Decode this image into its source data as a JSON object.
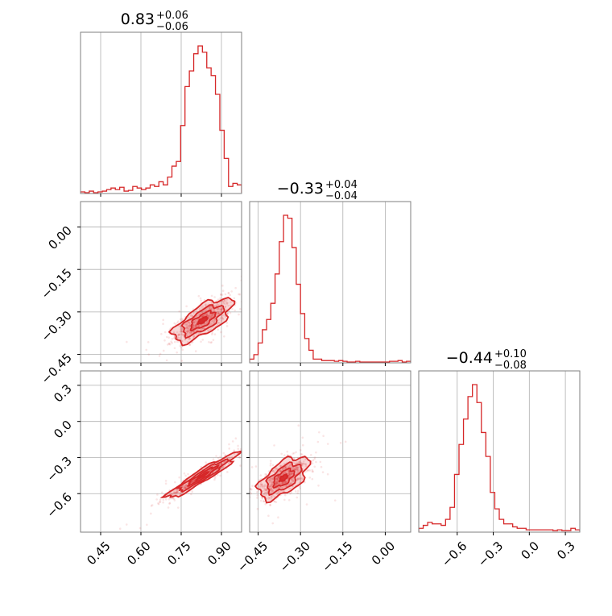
{
  "chart_data": {
    "type": "corner",
    "color": "#d62728",
    "grid": true,
    "parameters": [
      {
        "title": "0.83",
        "plus": "+0.06",
        "minus": "−0.06",
        "range": [
          0.375,
          0.975
        ]
      },
      {
        "title": "−0.33",
        "plus": "+0.04",
        "minus": "−0.04",
        "range": [
          -0.48,
          0.09
        ]
      },
      {
        "title": "−0.44",
        "plus": "+0.10",
        "minus": "−0.08",
        "range": [
          -0.92,
          0.42
        ]
      }
    ],
    "ticks": {
      "p0": {
        "values": [
          0.45,
          0.6,
          0.75,
          0.9
        ],
        "labels": [
          "0.45",
          "0.60",
          "0.75",
          "0.90"
        ]
      },
      "p1": {
        "values": [
          -0.45,
          -0.3,
          -0.15,
          0.0
        ],
        "labels": [
          "−0.45",
          "−0.30",
          "−0.15",
          "0.00"
        ]
      },
      "p2": {
        "values": [
          -0.6,
          -0.3,
          0.0,
          0.3
        ],
        "labels": [
          "−0.6",
          "−0.3",
          "0.0",
          "0.3"
        ]
      }
    },
    "histograms": [
      {
        "param": 0,
        "edges": [
          0.375,
          0.975
        ],
        "counts": [
          0.005,
          0,
          0.01,
          0,
          0.005,
          0.01,
          0.02,
          0.03,
          0.02,
          0.035,
          0.01,
          0.015,
          0.04,
          0.03,
          0.02,
          0.03,
          0.05,
          0.04,
          0.07,
          0.05,
          0.1,
          0.17,
          0.2,
          0.43,
          0.68,
          0.78,
          0.89,
          0.94,
          0.9,
          0.8,
          0.75,
          0.63,
          0.4,
          0.22,
          0.04,
          0.06,
          0.05
        ]
      },
      {
        "param": 1,
        "edges": [
          -0.48,
          0.09
        ],
        "counts": [
          0.02,
          0.05,
          0.13,
          0.22,
          0.29,
          0.4,
          0.6,
          0.82,
          1.0,
          0.98,
          0.78,
          0.53,
          0.33,
          0.16,
          0.08,
          0.02,
          0.02,
          0.01,
          0.01,
          0.01,
          0.005,
          0.01,
          0.005,
          0.0,
          0.0,
          0.005,
          0.0,
          0.0,
          0.0,
          0.0,
          0.0,
          0.0,
          0.0,
          0.005,
          0.005,
          0.01,
          0.0,
          0.005
        ]
      },
      {
        "param": 2,
        "edges": [
          -0.92,
          0.42
        ],
        "counts": [
          0.02,
          0.04,
          0.06,
          0.05,
          0.05,
          0.04,
          0.08,
          0.16,
          0.38,
          0.58,
          0.75,
          0.9,
          0.98,
          0.86,
          0.66,
          0.5,
          0.26,
          0.15,
          0.08,
          0.05,
          0.05,
          0.03,
          0.02,
          0.02,
          0.01,
          0.01,
          0.01,
          0.01,
          0.01,
          0.01,
          0.005,
          0.01,
          0.005,
          0.005,
          0.02,
          0.01
        ]
      }
    ],
    "pairs": [
      {
        "x_param": 0,
        "y_param": 1,
        "mean": [
          0.83,
          -0.33
        ],
        "sd": [
          0.05,
          0.035
        ],
        "rho": 0.7
      },
      {
        "x_param": 0,
        "y_param": 2,
        "mean": [
          0.83,
          -0.45
        ],
        "sd": [
          0.06,
          0.085
        ],
        "rho": 0.95
      },
      {
        "x_param": 1,
        "y_param": 2,
        "mean": [
          -0.36,
          -0.47
        ],
        "sd": [
          0.04,
          0.08
        ],
        "rho": 0.6
      }
    ]
  }
}
